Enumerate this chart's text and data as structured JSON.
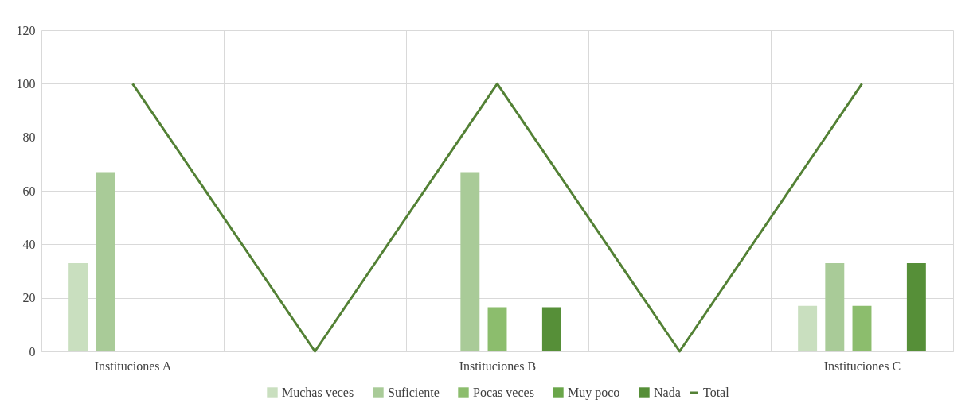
{
  "chart_data": {
    "type": "bar",
    "categories": [
      "Instituciones A",
      null,
      "Instituciones B",
      null,
      "Instituciones C"
    ],
    "series": [
      {
        "name": "Muchas veces",
        "color": "#c9dfbf",
        "values": [
          33,
          null,
          null,
          null,
          17
        ]
      },
      {
        "name": "Suficiente",
        "color": "#a9cb98",
        "values": [
          67,
          null,
          67,
          null,
          33
        ]
      },
      {
        "name": "Pocas veces",
        "color": "#8cbd6d",
        "values": [
          null,
          null,
          16.5,
          null,
          17
        ]
      },
      {
        "name": "Muy poco",
        "color": "#6aa64a",
        "values": [
          null,
          null,
          null,
          null,
          null
        ]
      },
      {
        "name": "Nada",
        "color": "#568f38",
        "values": [
          null,
          null,
          16.5,
          null,
          33
        ]
      },
      {
        "name": "Total",
        "type": "line",
        "color": "#538135",
        "values": [
          100,
          0,
          100,
          0,
          100
        ]
      }
    ],
    "ylim": [
      0,
      120
    ],
    "yticks": [
      0,
      20,
      40,
      60,
      80,
      100,
      120
    ],
    "grid": true,
    "legend": "bottom"
  }
}
